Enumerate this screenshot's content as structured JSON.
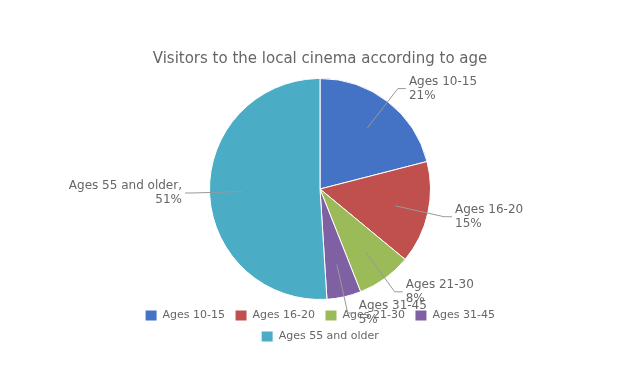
{
  "chart_data": {
    "type": "pie",
    "title": "Visitors to the local cinema according to age",
    "categories": [
      "Ages 10-15",
      "Ages 16-20",
      "Ages 21-30",
      "Ages 31-45",
      "Ages 55 and older"
    ],
    "values": [
      21,
      15,
      8,
      5,
      51
    ],
    "colors": [
      "#4472C4",
      "#C0504D",
      "#9BBB59",
      "#7F60A2",
      "#4BACC6"
    ],
    "annotations": [
      "Ages 10-15\n21%",
      "Ages 16-20\n15%",
      "Ages 21-30\n8%",
      "Ages 31-45\n5%",
      "Ages 55 and older,\n51%"
    ],
    "legend": "bottom"
  }
}
